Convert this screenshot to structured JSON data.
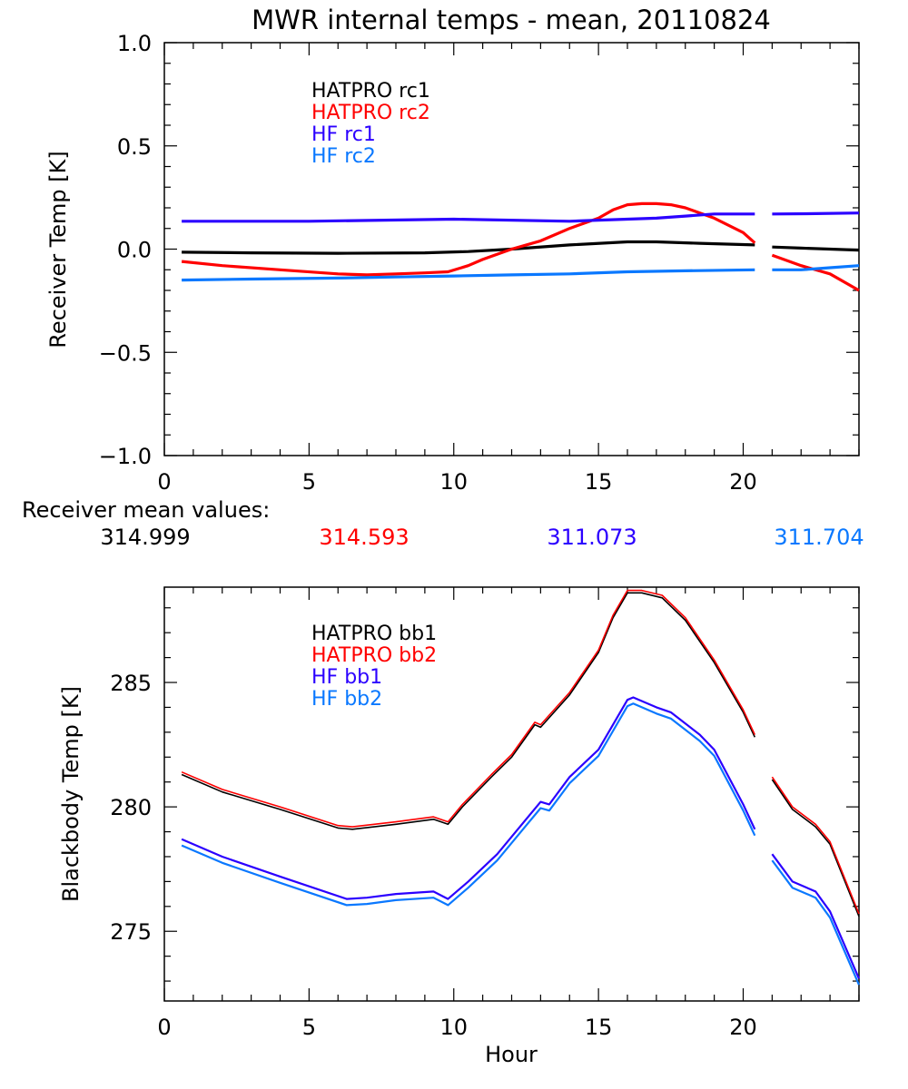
{
  "title": "MWR internal temps - mean, 20110824",
  "mean_values_label": "Receiver mean values:",
  "mean_values": [
    {
      "value": "314.999",
      "color": "#000000"
    },
    {
      "value": "314.593",
      "color": "#ff0000"
    },
    {
      "value": "311.073",
      "color": "#2b00ff"
    },
    {
      "value": "311.704",
      "color": "#0a78ff"
    }
  ],
  "chart_data": [
    {
      "type": "line",
      "title": "MWR internal temps - mean, 20110824",
      "xlabel": "",
      "ylabel": "Receiver Temp [K]",
      "xlim": [
        0,
        24
      ],
      "ylim": [
        -1.0,
        1.0
      ],
      "xticks": [
        0,
        5,
        10,
        15,
        20
      ],
      "xtick_labels": [
        "0",
        "5",
        "10",
        "15",
        "20"
      ],
      "yticks": [
        -1.0,
        -0.5,
        0.0,
        0.5,
        1.0
      ],
      "ytick_labels": [
        "−1.0",
        "−0.5",
        "0.0",
        "0.5",
        "1.0"
      ],
      "grid": false,
      "legend_position": "top-left",
      "series": [
        {
          "name": "HATPRO rc1",
          "color": "#000000",
          "segments": [
            {
              "x": [
                0.6,
                3,
                6,
                9,
                10.5,
                12,
                14,
                16,
                17,
                18.5,
                20.4
              ],
              "y": [
                -0.015,
                -0.018,
                -0.02,
                -0.018,
                -0.012,
                0.0,
                0.02,
                0.035,
                0.035,
                0.028,
                0.02
              ]
            },
            {
              "x": [
                21.0,
                22,
                23,
                24
              ],
              "y": [
                0.01,
                0.005,
                0.0,
                -0.005
              ]
            }
          ]
        },
        {
          "name": "HATPRO rc2",
          "color": "#ff0000",
          "segments": [
            {
              "x": [
                0.6,
                2,
                4,
                6,
                7,
                8,
                9,
                9.8,
                10.5,
                11,
                12,
                13,
                14,
                15,
                15.5,
                16,
                16.5,
                17,
                17.5,
                18,
                19,
                20,
                20.4
              ],
              "y": [
                -0.06,
                -0.08,
                -0.1,
                -0.12,
                -0.125,
                -0.12,
                -0.115,
                -0.11,
                -0.08,
                -0.05,
                0.0,
                0.04,
                0.1,
                0.15,
                0.19,
                0.215,
                0.22,
                0.22,
                0.215,
                0.2,
                0.15,
                0.08,
                0.03
              ]
            },
            {
              "x": [
                21.0,
                22,
                23,
                24
              ],
              "y": [
                -0.03,
                -0.08,
                -0.12,
                -0.2
              ]
            }
          ]
        },
        {
          "name": "HF rc1",
          "color": "#2b00ff",
          "segments": [
            {
              "x": [
                0.6,
                5,
                10,
                14,
                15,
                16,
                17,
                18,
                19,
                20.4
              ],
              "y": [
                0.135,
                0.135,
                0.145,
                0.135,
                0.14,
                0.145,
                0.15,
                0.16,
                0.17,
                0.17
              ]
            },
            {
              "x": [
                21.0,
                22.5,
                24
              ],
              "y": [
                0.17,
                0.172,
                0.175
              ]
            }
          ]
        },
        {
          "name": "HF rc2",
          "color": "#0a78ff",
          "segments": [
            {
              "x": [
                0.6,
                3,
                6,
                8,
                10,
                12,
                14,
                16,
                18,
                20.4
              ],
              "y": [
                -0.15,
                -0.145,
                -0.14,
                -0.135,
                -0.13,
                -0.125,
                -0.12,
                -0.11,
                -0.105,
                -0.1
              ]
            },
            {
              "x": [
                21.0,
                22,
                23,
                24
              ],
              "y": [
                -0.1,
                -0.1,
                -0.09,
                -0.08
              ]
            }
          ]
        }
      ]
    },
    {
      "type": "line",
      "title": "",
      "xlabel": "Hour",
      "ylabel": "Blackbody Temp [K]",
      "xlim": [
        0,
        24
      ],
      "ylim": [
        272.2,
        288.83
      ],
      "xticks": [
        0,
        5,
        10,
        15,
        20
      ],
      "xtick_labels": [
        "0",
        "5",
        "10",
        "15",
        "20"
      ],
      "yticks": [
        275,
        280,
        285
      ],
      "ytick_labels": [
        "275",
        "280",
        "285"
      ],
      "grid": false,
      "legend_position": "top-left",
      "series": [
        {
          "name": "HATPRO bb1",
          "color": "#000000",
          "segments": [
            {
              "x": [
                0.6,
                2,
                4,
                6,
                6.5,
                8,
                9.3,
                9.8,
                10.3,
                11.3,
                12,
                12.8,
                13,
                14,
                15,
                15.5,
                16,
                16.5,
                17.2,
                18,
                19,
                20,
                20.4
              ],
              "y": [
                281.3,
                280.6,
                279.9,
                279.15,
                279.1,
                279.3,
                279.5,
                279.3,
                280.0,
                281.2,
                282.0,
                283.3,
                283.2,
                284.5,
                286.2,
                287.6,
                288.6,
                288.6,
                288.4,
                287.5,
                285.8,
                283.8,
                282.8
              ]
            },
            {
              "x": [
                21.0,
                21.7,
                22.5,
                23,
                24
              ],
              "y": [
                281.1,
                279.9,
                279.2,
                278.5,
                275.6
              ]
            }
          ]
        },
        {
          "name": "HATPRO bb2",
          "color": "#ff0000",
          "segments": [
            {
              "x": [
                0.6,
                2,
                4,
                6,
                6.5,
                8,
                9.3,
                9.8,
                10.3,
                11.3,
                12,
                12.8,
                13,
                14,
                15,
                15.5,
                16,
                16.5,
                17.2,
                18,
                19,
                20,
                20.4
              ],
              "y": [
                281.4,
                280.7,
                280.0,
                279.25,
                279.2,
                279.4,
                279.6,
                279.4,
                280.1,
                281.3,
                282.1,
                283.4,
                283.3,
                284.6,
                286.3,
                287.7,
                288.7,
                288.7,
                288.5,
                287.6,
                285.9,
                283.9,
                282.9
              ]
            },
            {
              "x": [
                21.0,
                21.7,
                22.5,
                23,
                24
              ],
              "y": [
                281.2,
                280.0,
                279.3,
                278.6,
                275.7
              ]
            }
          ]
        },
        {
          "name": "HF bb1",
          "color": "#2b00ff",
          "segments": [
            {
              "x": [
                0.6,
                2,
                4,
                6.3,
                7,
                8,
                9.3,
                9.8,
                10.5,
                11.5,
                12.5,
                13,
                13.3,
                14,
                15,
                15.5,
                16,
                16.2,
                17,
                17.5,
                18.5,
                19,
                20,
                20.4
              ],
              "y": [
                278.7,
                278.0,
                277.2,
                276.3,
                276.35,
                276.5,
                276.6,
                276.3,
                277.0,
                278.1,
                279.5,
                280.2,
                280.1,
                281.2,
                282.3,
                283.3,
                284.3,
                284.4,
                284.0,
                283.8,
                282.9,
                282.3,
                280.1,
                279.1
              ]
            },
            {
              "x": [
                21.0,
                21.7,
                22.5,
                23,
                24
              ],
              "y": [
                278.1,
                277.0,
                276.6,
                275.8,
                273.1
              ]
            }
          ]
        },
        {
          "name": "HF bb2",
          "color": "#0a78ff",
          "segments": [
            {
              "x": [
                0.6,
                2,
                4,
                6.3,
                7,
                8,
                9.3,
                9.8,
                10.5,
                11.5,
                12.5,
                13,
                13.3,
                14,
                15,
                15.5,
                16,
                16.2,
                17,
                17.5,
                18.5,
                19,
                20,
                20.4
              ],
              "y": [
                278.45,
                277.75,
                276.95,
                276.05,
                276.1,
                276.25,
                276.35,
                276.05,
                276.75,
                277.85,
                279.25,
                279.95,
                279.85,
                280.95,
                282.05,
                283.05,
                284.05,
                284.15,
                283.75,
                283.55,
                282.65,
                282.05,
                279.85,
                278.85
              ]
            },
            {
              "x": [
                21.0,
                21.7,
                22.5,
                23,
                24
              ],
              "y": [
                277.85,
                276.75,
                276.35,
                275.55,
                272.85
              ]
            }
          ]
        }
      ]
    }
  ]
}
